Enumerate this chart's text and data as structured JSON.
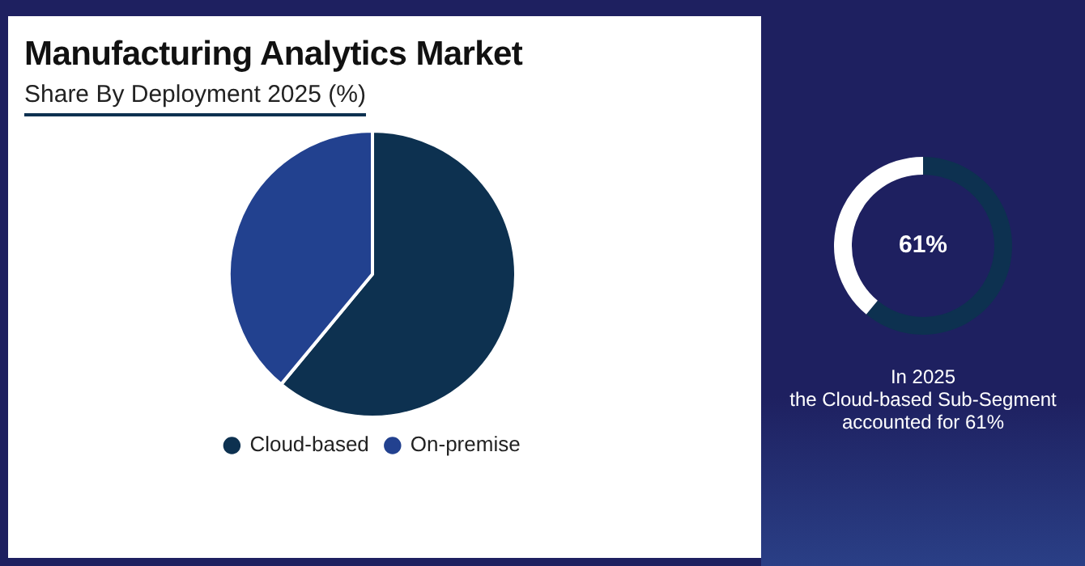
{
  "chart_data": [
    {
      "type": "pie",
      "title": "Manufacturing Analytics Market",
      "subtitle": "Share By Deployment 2025 (%)",
      "categories": [
        "Cloud-based",
        "On-premise"
      ],
      "values": [
        61,
        39
      ],
      "colors": [
        "#0d3150",
        "#22418f"
      ],
      "legend": "bottom"
    },
    {
      "type": "donut",
      "categories": [
        null,
        null
      ],
      "values": [
        61,
        39
      ],
      "colors": [
        "#0d3150",
        "#ffffff"
      ],
      "value_labels": [
        "61%",
        null
      ],
      "annotations": [
        "In 2025\nthe Cloud-based Sub-Segment\naccounted for 61%"
      ]
    }
  ]
}
